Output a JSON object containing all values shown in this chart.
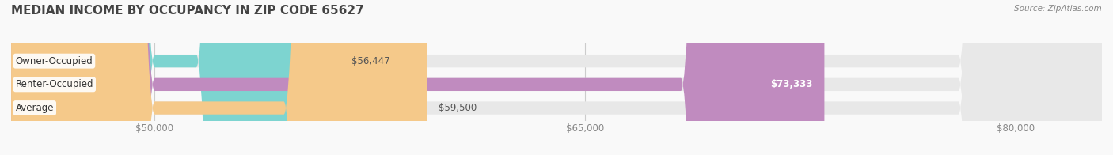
{
  "title": "MEDIAN INCOME BY OCCUPANCY IN ZIP CODE 65627",
  "source": "Source: ZipAtlas.com",
  "categories": [
    "Owner-Occupied",
    "Renter-Occupied",
    "Average"
  ],
  "values": [
    56447,
    73333,
    59500
  ],
  "bar_colors": [
    "#7dd4d0",
    "#c08bbf",
    "#f5c98a"
  ],
  "bar_bg_color": "#e8e8e8",
  "value_labels": [
    "$56,447",
    "$73,333",
    "$59,500"
  ],
  "value_label_colors": [
    "#555555",
    "#ffffff",
    "#555555"
  ],
  "xlim_min": 45000,
  "xlim_max": 83000,
  "xticks": [
    50000,
    65000,
    80000
  ],
  "xtick_labels": [
    "$50,000",
    "$65,000",
    "$80,000"
  ],
  "title_fontsize": 11,
  "tick_fontsize": 8.5,
  "label_fontsize": 8.5,
  "bar_height": 0.55,
  "background_color": "#f9f9f9"
}
